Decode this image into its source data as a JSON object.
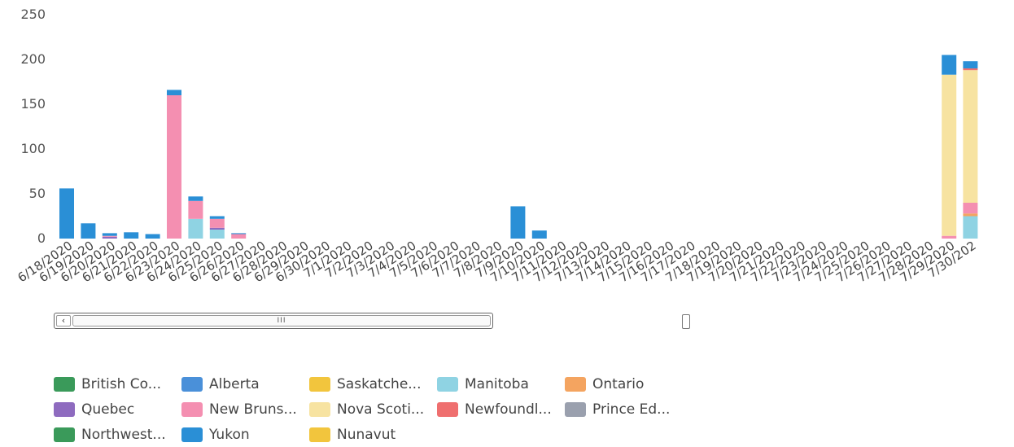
{
  "chart_data": {
    "type": "bar",
    "stacked": true,
    "ylim": [
      0,
      250
    ],
    "y_ticks": [
      0,
      50,
      100,
      150,
      200,
      250
    ],
    "categories": [
      "6/18/2020",
      "6/19/2020",
      "6/20/2020",
      "6/21/2020",
      "6/22/2020",
      "6/23/2020",
      "6/24/2020",
      "6/25/2020",
      "6/26/2020",
      "6/27/2020",
      "6/28/2020",
      "6/29/2020",
      "6/30/2020",
      "7/1/2020",
      "7/2/2020",
      "7/3/2020",
      "7/4/2020",
      "7/5/2020",
      "7/6/2020",
      "7/7/2020",
      "7/8/2020",
      "7/9/2020",
      "7/10/2020",
      "7/11/2020",
      "7/12/2020",
      "7/13/2020",
      "7/14/2020",
      "7/15/2020",
      "7/16/2020",
      "7/17/2020",
      "7/18/2020",
      "7/19/2020",
      "7/20/2020",
      "7/21/2020",
      "7/22/2020",
      "7/23/2020",
      "7/24/2020",
      "7/25/2020",
      "7/26/2020",
      "7/27/2020",
      "7/28/2020",
      "7/29/2020",
      "7/30/2020"
    ],
    "visible_tick_labels": [
      "6/18/2020",
      "6/19/2020",
      "6/20/2020",
      "6/21/2020",
      "6/22/2020",
      "6/23/2020",
      "6/24/2020",
      "6/25/2020",
      "6/26/2020",
      "6/27/2020",
      "6/28/2020",
      "6/29/2020",
      "6/30/2020",
      "7/1/2020",
      "7/2/2020",
      "7/3/2020",
      "7/4/2020",
      "7/5/2020",
      "7/6/2020",
      "7/7/2020",
      "7/8/2020",
      "7/9/2020",
      "7/10/2020",
      "7/11/2020",
      "7/12/2020",
      "7/13/2020",
      "7/14/2020",
      "7/15/2020",
      "7/16/2020",
      "7/17/2020",
      "7/18/2020",
      "7/19/2020",
      "7/20/2020",
      "7/21/2020",
      "7/22/2020",
      "7/23/2020",
      "7/24/2020",
      "7/25/2020",
      "7/26/2020",
      "7/27/2020",
      "7/28/2020",
      "7/29/2020",
      "7/30/202"
    ],
    "series": [
      {
        "name": "British Co...",
        "color": "#3a9a5a",
        "values": [
          0,
          0,
          0,
          0,
          0,
          0,
          0,
          0,
          0,
          0,
          0,
          0,
          0,
          0,
          0,
          0,
          0,
          0,
          0,
          0,
          0,
          0,
          0,
          0,
          0,
          0,
          0,
          0,
          0,
          0,
          0,
          0,
          0,
          0,
          0,
          0,
          0,
          0,
          0,
          0,
          0,
          0,
          0
        ]
      },
      {
        "name": "Alberta",
        "color": "#4a90d9",
        "values": [
          0,
          0,
          0,
          0,
          0,
          0,
          0,
          0,
          0,
          0,
          0,
          0,
          0,
          0,
          0,
          0,
          0,
          0,
          0,
          0,
          0,
          0,
          0,
          0,
          0,
          0,
          0,
          0,
          0,
          0,
          0,
          0,
          0,
          0,
          0,
          0,
          0,
          0,
          0,
          0,
          0,
          0,
          0
        ]
      },
      {
        "name": "Saskatche...",
        "color": "#f2c53d",
        "values": [
          0,
          0,
          0,
          0,
          0,
          0,
          0,
          0,
          0,
          0,
          0,
          0,
          0,
          0,
          0,
          0,
          0,
          0,
          0,
          0,
          0,
          0,
          0,
          0,
          0,
          0,
          0,
          0,
          0,
          0,
          0,
          0,
          0,
          0,
          0,
          0,
          0,
          0,
          0,
          0,
          0,
          0,
          0
        ]
      },
      {
        "name": "Manitoba",
        "color": "#8fd3e3",
        "values": [
          0,
          0,
          0,
          0,
          0,
          0,
          22,
          10,
          0,
          0,
          0,
          0,
          0,
          0,
          0,
          0,
          0,
          0,
          0,
          0,
          0,
          0,
          0,
          0,
          0,
          0,
          0,
          0,
          0,
          0,
          0,
          0,
          0,
          0,
          0,
          0,
          0,
          0,
          0,
          0,
          0,
          0,
          25
        ]
      },
      {
        "name": "Ontario",
        "color": "#f4a460",
        "values": [
          0,
          0,
          0,
          0,
          0,
          0,
          0,
          0,
          0,
          0,
          0,
          0,
          0,
          0,
          0,
          0,
          0,
          0,
          0,
          0,
          0,
          0,
          0,
          0,
          0,
          0,
          0,
          0,
          0,
          0,
          0,
          0,
          0,
          0,
          0,
          0,
          0,
          0,
          0,
          0,
          0,
          0,
          3
        ]
      },
      {
        "name": "Quebec",
        "color": "#8e6bbf",
        "values": [
          0,
          0,
          2,
          0,
          0,
          0,
          0,
          2,
          0,
          0,
          0,
          0,
          0,
          0,
          0,
          0,
          0,
          0,
          0,
          0,
          0,
          0,
          0,
          0,
          0,
          0,
          0,
          0,
          0,
          0,
          0,
          0,
          0,
          0,
          0,
          0,
          0,
          0,
          0,
          0,
          0,
          0,
          0
        ]
      },
      {
        "name": "New Bruns...",
        "color": "#f48fb1",
        "values": [
          0,
          0,
          1,
          0,
          0,
          160,
          20,
          10,
          5,
          0,
          0,
          0,
          0,
          0,
          0,
          0,
          0,
          0,
          0,
          0,
          0,
          0,
          0,
          0,
          0,
          0,
          0,
          0,
          0,
          0,
          0,
          0,
          0,
          0,
          0,
          0,
          0,
          0,
          0,
          0,
          0,
          3,
          12
        ]
      },
      {
        "name": "Nova Scoti...",
        "color": "#f7e3a1",
        "values": [
          0,
          0,
          0,
          0,
          0,
          0,
          0,
          0,
          0,
          0,
          0,
          0,
          0,
          0,
          0,
          0,
          0,
          0,
          0,
          0,
          0,
          0,
          0,
          0,
          0,
          0,
          0,
          0,
          0,
          0,
          0,
          0,
          0,
          0,
          0,
          0,
          0,
          0,
          0,
          0,
          0,
          180,
          148
        ]
      },
      {
        "name": "Newfoundl...",
        "color": "#ef6f6f",
        "values": [
          0,
          0,
          0,
          0,
          0,
          0,
          0,
          0,
          0,
          0,
          0,
          0,
          0,
          0,
          0,
          0,
          0,
          0,
          0,
          0,
          0,
          0,
          0,
          0,
          0,
          0,
          0,
          0,
          0,
          0,
          0,
          0,
          0,
          0,
          0,
          0,
          0,
          0,
          0,
          0,
          0,
          0,
          2
        ]
      },
      {
        "name": "Prince Ed...",
        "color": "#9aa0ae",
        "values": [
          0,
          0,
          0,
          0,
          0,
          0,
          0,
          0,
          0,
          0,
          0,
          0,
          0,
          0,
          0,
          0,
          0,
          0,
          0,
          0,
          0,
          0,
          0,
          0,
          0,
          0,
          0,
          0,
          0,
          0,
          0,
          0,
          0,
          0,
          0,
          0,
          0,
          0,
          0,
          0,
          0,
          0,
          0
        ]
      },
      {
        "name": "Northwest...",
        "color": "#3a9a5a",
        "values": [
          0,
          0,
          0,
          0,
          0,
          0,
          0,
          0,
          0,
          0,
          0,
          0,
          0,
          0,
          0,
          0,
          0,
          0,
          0,
          0,
          0,
          0,
          0,
          0,
          0,
          0,
          0,
          0,
          0,
          0,
          0,
          0,
          0,
          0,
          0,
          0,
          0,
          0,
          0,
          0,
          0,
          0,
          0
        ]
      },
      {
        "name": "Yukon",
        "color": "#2a8fd6",
        "values": [
          56,
          17,
          3,
          7,
          5,
          6,
          5,
          3,
          1,
          0,
          0,
          0,
          0,
          0,
          0,
          0,
          0,
          0,
          0,
          0,
          0,
          36,
          9,
          0,
          0,
          0,
          0,
          0,
          0,
          0,
          0,
          0,
          0,
          0,
          0,
          0,
          0,
          0,
          0,
          0,
          0,
          22,
          8
        ]
      },
      {
        "name": "Nunavut",
        "color": "#f2c53d",
        "values": [
          0,
          0,
          0,
          0,
          0,
          0,
          0,
          0,
          0,
          0,
          0,
          0,
          0,
          0,
          0,
          0,
          0,
          0,
          0,
          0,
          0,
          0,
          0,
          0,
          0,
          0,
          0,
          0,
          0,
          0,
          0,
          0,
          0,
          0,
          0,
          0,
          0,
          0,
          0,
          0,
          0,
          0,
          0
        ]
      }
    ],
    "legend_placement": "bottom",
    "grid": false
  },
  "scrollbar": {
    "grip": "III",
    "left_arrow": "‹",
    "right_label": ""
  }
}
